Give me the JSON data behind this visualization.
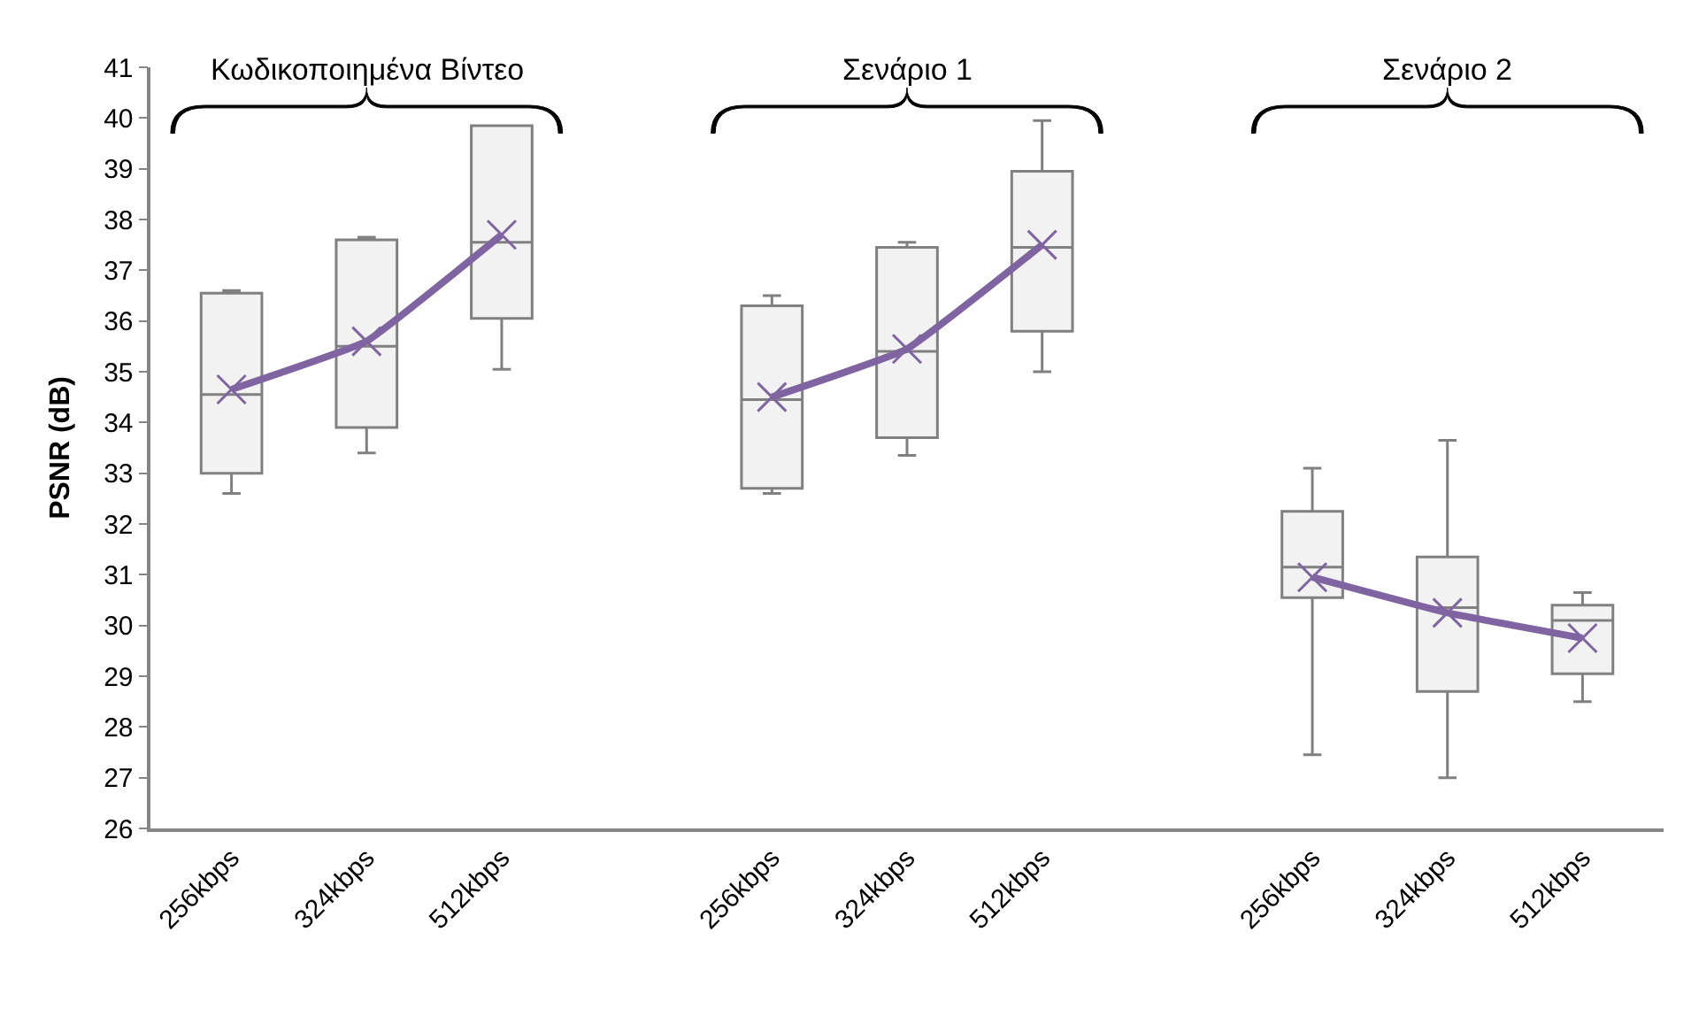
{
  "chart_data": {
    "type": "box",
    "ylabel": "PSNR (dB)",
    "categories": [
      "256kbps",
      "324kbps",
      "512kbps",
      null,
      "256kbps",
      "324kbps",
      "512kbps",
      null,
      "256kbps",
      "324kbps",
      "512kbps"
    ],
    "boxes": [
      {
        "low": 32.6,
        "q1": 33.0,
        "median": 34.55,
        "q3": 36.55,
        "high": 36.6
      },
      {
        "low": 33.4,
        "q1": 33.9,
        "median": 35.5,
        "q3": 37.6,
        "high": 37.65
      },
      {
        "low": 35.05,
        "q1": 36.05,
        "median": 37.55,
        "q3": 39.85,
        "high": 39.85
      },
      null,
      {
        "low": 32.6,
        "q1": 32.7,
        "median": 34.45,
        "q3": 36.3,
        "high": 36.5
      },
      {
        "low": 33.35,
        "q1": 33.7,
        "median": 35.4,
        "q3": 37.45,
        "high": 37.55
      },
      {
        "low": 35.0,
        "q1": 35.8,
        "median": 37.45,
        "q3": 38.95,
        "high": 39.95
      },
      null,
      {
        "low": 27.45,
        "q1": 30.55,
        "median": 31.15,
        "q3": 32.25,
        "high": 33.1
      },
      {
        "low": 27.0,
        "q1": 28.7,
        "median": 30.35,
        "q3": 31.35,
        "high": 33.65
      },
      {
        "low": 28.5,
        "q1": 29.05,
        "median": 30.1,
        "q3": 30.4,
        "high": 30.65
      }
    ],
    "color": "#f2f2f2",
    "series": [
      {
        "type": "line",
        "color": "#8064a2",
        "marker": "cross",
        "values": [
          34.65,
          35.6,
          37.7,
          null,
          34.5,
          35.45,
          37.5,
          null,
          30.95,
          30.25,
          29.75
        ]
      }
    ],
    "annotations": [
      "Κωδικοποιημένα Βίντεο",
      "Σενάριο 1",
      "Σενάριο 2"
    ],
    "ylim": [
      26,
      41
    ],
    "yticks": [
      26,
      27,
      28,
      29,
      30,
      31,
      32,
      33,
      34,
      35,
      36,
      37,
      38,
      39,
      40,
      41
    ]
  }
}
